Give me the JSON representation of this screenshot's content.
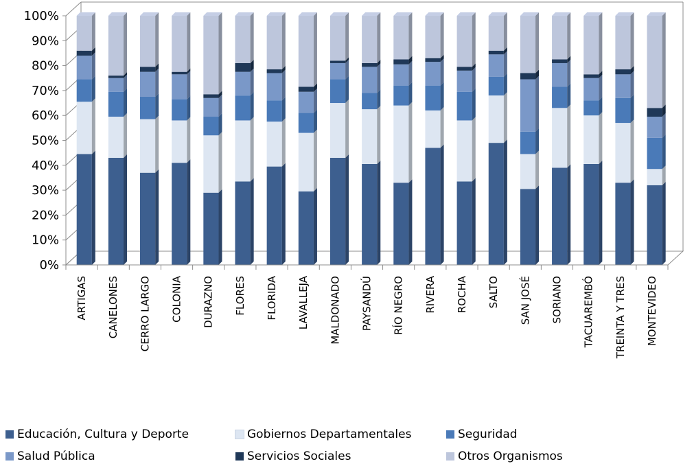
{
  "chart_data": {
    "type": "bar",
    "stacked": true,
    "percent_stacked": true,
    "three_d": true,
    "categories": [
      "ARTIGAS",
      "CANELONES",
      "CERRO LARGO",
      "COLONIA",
      "DURAZNO",
      "FLORES",
      "FLORIDA",
      "LAVALLEJA",
      "MALDONADO",
      "PAYSANDÚ",
      "RÍO NEGRO",
      "RIVERA",
      "ROCHA",
      "SALTO",
      "SAN JOSÉ",
      "SORIANO",
      "TACUAREMBÓ",
      "TREINTA Y TRES",
      "MONTEVIDEO"
    ],
    "series": [
      {
        "name": "Educación, Cultura y Deporte",
        "color": "#3d5f8f",
        "values": [
          44.5,
          43,
          37,
          41,
          29,
          33.5,
          39.5,
          29.5,
          43,
          40.5,
          33,
          47,
          33.5,
          49,
          30.5,
          39,
          40.5,
          33,
          32
        ]
      },
      {
        "name": "Gobiernos Departamentales",
        "color": "#dde6f2",
        "values": [
          21,
          16.5,
          21.5,
          17,
          23,
          24.5,
          18,
          23.5,
          22,
          22,
          31,
          15,
          24.5,
          19,
          14,
          24,
          19.5,
          24,
          6.5
        ]
      },
      {
        "name": "Seguridad",
        "color": "#4a7ab8",
        "values": [
          9,
          10,
          9,
          8.5,
          7.5,
          10,
          8.5,
          8,
          9.5,
          6.5,
          8,
          10,
          11.5,
          7.5,
          9,
          8.5,
          6,
          10,
          12.5
        ]
      },
      {
        "name": "Salud Pública",
        "color": "#7a98c8",
        "values": [
          9.5,
          5.5,
          10,
          10,
          7.5,
          9.5,
          11,
          8.5,
          6.5,
          10.5,
          8.5,
          9.5,
          8.5,
          9,
          21,
          9.5,
          9,
          9.5,
          8.5
        ]
      },
      {
        "name": "Servicios Sociales",
        "color": "#1f3858",
        "values": [
          2,
          1,
          2,
          1,
          1.5,
          3.5,
          1.5,
          2,
          1,
          1.5,
          2,
          1.5,
          1.5,
          1.5,
          2.5,
          1.5,
          1.5,
          2,
          3.5
        ]
      },
      {
        "name": "Otros Organismos",
        "color": "#bdc6dc",
        "values": [
          14,
          24,
          20.5,
          22.5,
          31.5,
          19,
          21.5,
          28.5,
          18,
          19,
          17.5,
          17,
          20.5,
          14,
          23,
          17.5,
          23.5,
          21.5,
          37
        ]
      }
    ],
    "y_ticks": [
      "0%",
      "10%",
      "20%",
      "30%",
      "40%",
      "50%",
      "60%",
      "70%",
      "80%",
      "90%",
      "100%"
    ],
    "ylim": [
      0,
      100
    ],
    "grid": false,
    "legend_position": "bottom",
    "title": "",
    "xlabel": "",
    "ylabel": ""
  }
}
